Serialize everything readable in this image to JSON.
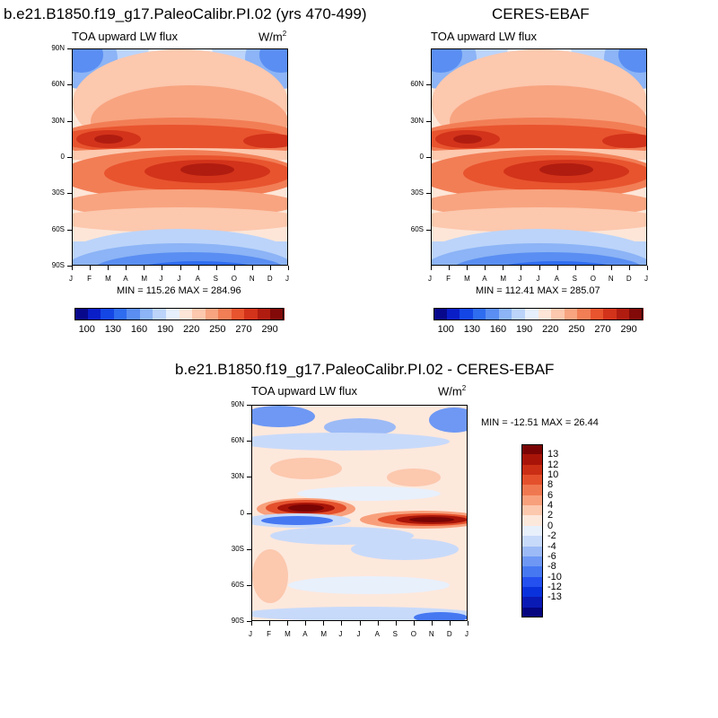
{
  "chart_data": [
    {
      "type": "heatmap",
      "title": "b.e21.B1850.f19_g17.PaleoCalibr.PI.02 (yrs 470-499)",
      "subtitle": "TOA upward LW flux",
      "units_prefix": "W/m",
      "units_exp": "2",
      "x_ticks": [
        "J",
        "F",
        "M",
        "A",
        "M",
        "J",
        "J",
        "A",
        "S",
        "O",
        "N",
        "D",
        "J"
      ],
      "y_ticks": [
        "90N",
        "60N",
        "30N",
        "0",
        "30S",
        "60S",
        "90S"
      ],
      "stats": "MIN = 115.26 MAX = 284.96",
      "min": 115.26,
      "max": 284.96,
      "colorbar_labels": [
        "100",
        "130",
        "160",
        "190",
        "220",
        "250",
        "270",
        "290"
      ],
      "colorbar_levels": [
        100,
        115,
        130,
        145,
        160,
        175,
        190,
        205,
        220,
        235,
        250,
        260,
        270,
        280,
        290
      ]
    },
    {
      "type": "heatmap",
      "title": "CERES-EBAF",
      "subtitle": "TOA upward LW flux",
      "x_ticks": [
        "J",
        "F",
        "M",
        "A",
        "M",
        "J",
        "J",
        "A",
        "S",
        "O",
        "N",
        "D",
        "J"
      ],
      "y_ticks": [
        "60N",
        "30N",
        "0",
        "30S",
        "60S"
      ],
      "stats": "MIN = 112.41 MAX = 285.07",
      "min": 112.41,
      "max": 285.07,
      "colorbar_labels": [
        "100",
        "130",
        "160",
        "190",
        "220",
        "250",
        "270",
        "290"
      ],
      "colorbar_levels": [
        100,
        115,
        130,
        145,
        160,
        175,
        190,
        205,
        220,
        235,
        250,
        260,
        270,
        280,
        290
      ]
    },
    {
      "type": "heatmap",
      "title": "b.e21.B1850.f19_g17.PaleoCalibr.PI.02 - CERES-EBAF",
      "subtitle": "TOA upward LW flux",
      "units_prefix": "W/m",
      "units_exp": "2",
      "x_ticks": [
        "J",
        "F",
        "M",
        "A",
        "M",
        "J",
        "J",
        "A",
        "S",
        "O",
        "N",
        "D",
        "J"
      ],
      "y_ticks": [
        "90N",
        "60N",
        "30N",
        "0",
        "30S",
        "60S",
        "90S"
      ],
      "stats": "MIN = -12.51 MAX =  26.44",
      "min": -12.51,
      "max": 26.44,
      "colorbar_labels": [
        "13",
        "12",
        "10",
        "8",
        "6",
        "4",
        "2",
        "0",
        "-2",
        "-4",
        "-6",
        "-8",
        "-10",
        "-12",
        "-13"
      ],
      "colorbar_levels": [
        -13,
        -12,
        -10,
        -8,
        -6,
        -4,
        -2,
        0,
        2,
        4,
        6,
        8,
        10,
        12,
        13
      ]
    }
  ],
  "colors": {
    "abs_palette": [
      "#08088c",
      "#0a1ec8",
      "#1446e6",
      "#2e6cf0",
      "#5a8ef2",
      "#8cb4f6",
      "#bcd4fa",
      "#e6f0fc",
      "#fde6d8",
      "#fcc8ae",
      "#f8a480",
      "#f27e56",
      "#e8542e",
      "#d2331a",
      "#b01c10",
      "#820a08"
    ],
    "diff_palette": [
      "#050580",
      "#0a1ab4",
      "#0a32dc",
      "#2450f0",
      "#4678f2",
      "#6e98f4",
      "#9cbaf6",
      "#c8dafa",
      "#e8f0fc",
      "#fde8dc",
      "#fcc8ae",
      "#f8a07c",
      "#f07850",
      "#e4502c",
      "#ca2e14",
      "#a81408",
      "#7a0404"
    ]
  }
}
